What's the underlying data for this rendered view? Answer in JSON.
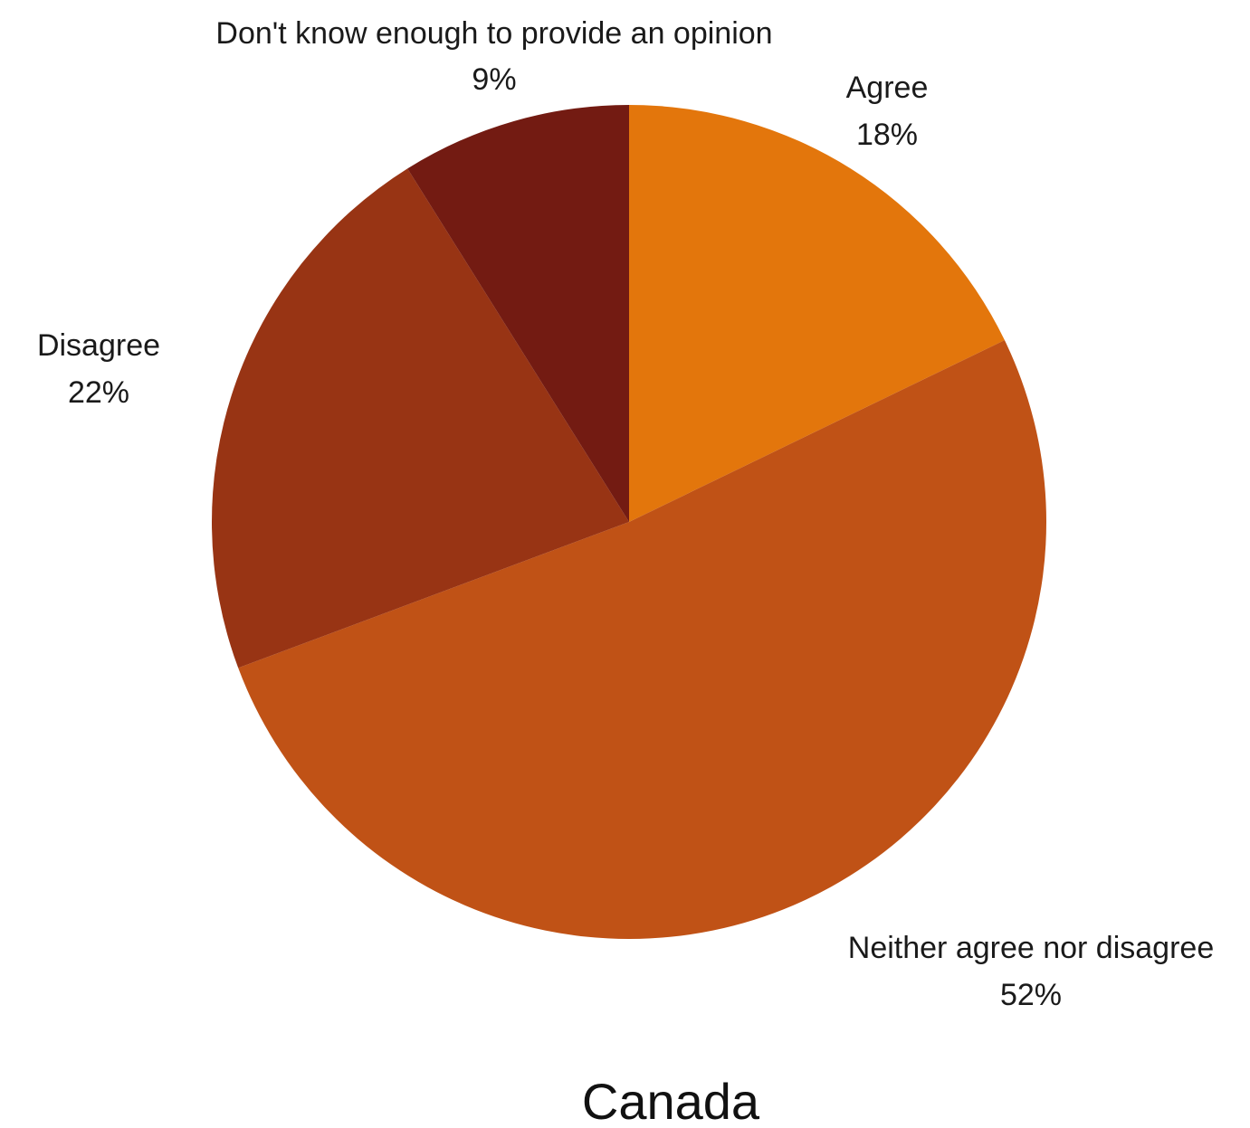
{
  "chart_data": {
    "type": "pie",
    "title": "Canada",
    "slices": [
      {
        "label": "Agree",
        "percent_label": "18%",
        "value": 18,
        "color": "#E3760C"
      },
      {
        "label": "Neither agree nor disagree",
        "percent_label": "52%",
        "value": 52,
        "color": "#C05216"
      },
      {
        "label": "Disagree",
        "percent_label": "22%",
        "value": 22,
        "color": "#983414"
      },
      {
        "label": "Don't know enough to provide an opinion",
        "percent_label": "9%",
        "value": 9,
        "color": "#731B12"
      }
    ]
  }
}
